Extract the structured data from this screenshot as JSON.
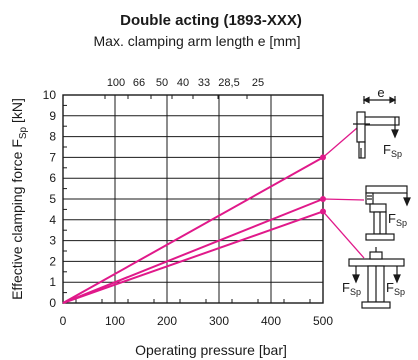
{
  "chart_data": {
    "type": "line",
    "title": "Double acting (1893-XXX)",
    "subtitle": "Max. clamping arm length e [mm]",
    "xlabel": "Operating pressure [bar]",
    "ylabel_main": "Effective clamping force F",
    "ylabel_sub": "Sp",
    "ylabel_unit": " [kN]",
    "xlim": [
      0,
      500
    ],
    "ylim": [
      0,
      10
    ],
    "x_ticks": [
      "0",
      "100",
      "200",
      "300",
      "400",
      "500"
    ],
    "y_ticks": [
      "0",
      "1",
      "2",
      "3",
      "4",
      "5",
      "6",
      "7",
      "8",
      "9",
      "10"
    ],
    "top_ticks": [
      "100",
      "66",
      "50",
      "40",
      "33",
      "28,5",
      "25"
    ],
    "grid": true,
    "line_color": "#e0198a",
    "series": [
      {
        "x": [
          0,
          500
        ],
        "y": [
          0,
          7.0
        ]
      },
      {
        "x": [
          0,
          500
        ],
        "y": [
          0,
          5.0
        ]
      },
      {
        "x": [
          0,
          500
        ],
        "y": [
          0,
          4.4
        ]
      }
    ],
    "icon_labels": {
      "arm_length": "e",
      "force_main": "F",
      "force_sub": "Sp"
    }
  }
}
